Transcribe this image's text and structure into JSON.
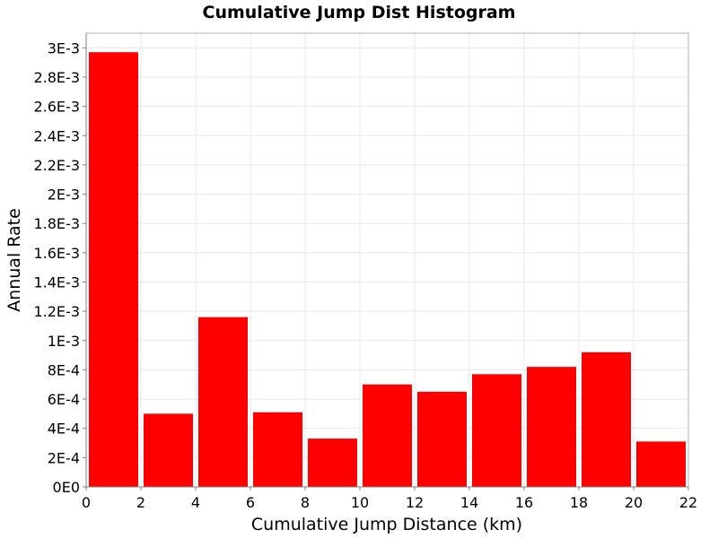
{
  "chart_data": {
    "type": "bar",
    "title": "Cumulative Jump Dist Histogram",
    "xlabel": "Cumulative Jump Distance (km)",
    "ylabel": "Annual Rate",
    "xlim": [
      0,
      22
    ],
    "ylim": [
      0,
      0.0031
    ],
    "bin_width": 2,
    "bins": [
      {
        "x0": 0,
        "x1": 2,
        "value": 0.00297
      },
      {
        "x0": 2,
        "x1": 4,
        "value": 0.0005
      },
      {
        "x0": 4,
        "x1": 6,
        "value": 0.00116
      },
      {
        "x0": 6,
        "x1": 8,
        "value": 0.00051
      },
      {
        "x0": 8,
        "x1": 10,
        "value": 0.00033
      },
      {
        "x0": 10,
        "x1": 12,
        "value": 0.0007
      },
      {
        "x0": 12,
        "x1": 14,
        "value": 0.00065
      },
      {
        "x0": 14,
        "x1": 16,
        "value": 0.00077
      },
      {
        "x0": 16,
        "x1": 18,
        "value": 0.00082
      },
      {
        "x0": 18,
        "x1": 20,
        "value": 0.00092
      },
      {
        "x0": 20,
        "x1": 22,
        "value": 0.00031
      }
    ],
    "x_ticks": [
      0,
      2,
      4,
      6,
      8,
      10,
      12,
      14,
      16,
      18,
      20,
      22
    ],
    "x_tick_labels": [
      "0",
      "2",
      "4",
      "6",
      "8",
      "10",
      "12",
      "14",
      "16",
      "18",
      "20",
      "22"
    ],
    "y_ticks": [
      0,
      0.0002,
      0.0004,
      0.0006,
      0.0008,
      0.001,
      0.0012,
      0.0014,
      0.0016,
      0.0018,
      0.002,
      0.0022,
      0.0024,
      0.0026,
      0.0028,
      0.003
    ],
    "y_tick_labels": [
      "0E0",
      "2E-4",
      "4E-4",
      "6E-4",
      "8E-4",
      "1E-3",
      "1.2E-3",
      "1.4E-3",
      "1.6E-3",
      "1.8E-3",
      "2E-3",
      "2.2E-3",
      "2.4E-3",
      "2.6E-3",
      "2.8E-3",
      "3E-3"
    ],
    "grid": true,
    "legend": "none",
    "bar_color": "#ff0000"
  }
}
